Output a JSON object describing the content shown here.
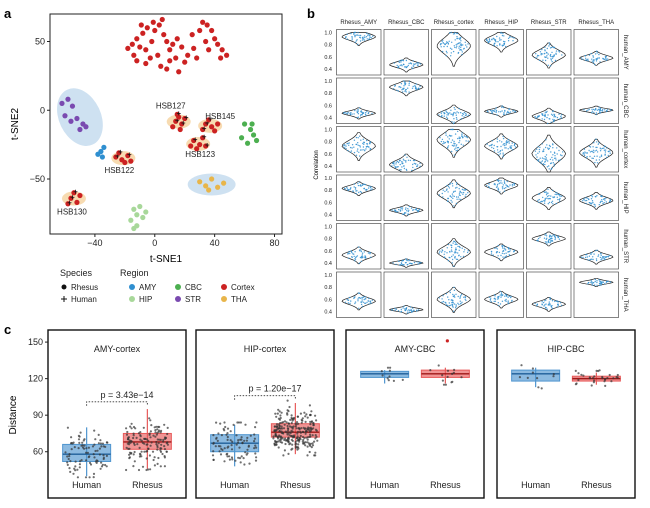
{
  "panel_labels": {
    "a": "a",
    "b": "b",
    "c": "c"
  },
  "colors": {
    "AMY": "#2f8fd0",
    "CBC": "#4caf50",
    "Cortex": "#cc2222",
    "HIP": "#a8d89a",
    "STR": "#7a4ab0",
    "THA": "#e8b54a",
    "ellipse": "#c6dcef",
    "human_box": "#4f95cf",
    "rhesus_box": "#e85a5a",
    "violin_points": "#2f8fd0"
  },
  "chart_data": [
    {
      "id": "tsne",
      "type": "scatter",
      "xlabel": "t-SNE1",
      "ylabel": "t-SNE2",
      "xlim": [
        -70,
        85
      ],
      "ylim": [
        -90,
        70
      ],
      "xticks": [
        -40,
        0,
        40,
        80
      ],
      "yticks": [
        -50,
        0,
        50
      ],
      "xtick_labels": [
        "−40",
        "0",
        "40",
        "80"
      ],
      "ytick_labels": [
        "−50",
        "0",
        "50"
      ],
      "clusters": [
        {
          "region": "Cortex",
          "species": "Rhesus",
          "points": [
            [
              -12,
              52
            ],
            [
              -8,
              56
            ],
            [
              -5,
              60
            ],
            [
              -10,
              46
            ],
            [
              -14,
              40
            ],
            [
              -6,
              44
            ],
            [
              -2,
              50
            ],
            [
              0,
              58
            ],
            [
              3,
              62
            ],
            [
              6,
              55
            ],
            [
              -15,
              48
            ],
            [
              -18,
              45
            ],
            [
              2,
              40
            ],
            [
              -3,
              38
            ],
            [
              8,
              50
            ],
            [
              10,
              44
            ],
            [
              12,
              48
            ],
            [
              14,
              38
            ],
            [
              15,
              52
            ],
            [
              18,
              46
            ],
            [
              20,
              35
            ],
            [
              22,
              40
            ],
            [
              -1,
              64
            ],
            [
              5,
              66
            ],
            [
              -9,
              62
            ],
            [
              25,
              55
            ],
            [
              26,
              45
            ],
            [
              28,
              38
            ],
            [
              30,
              58
            ],
            [
              32,
              64
            ],
            [
              35,
              62
            ],
            [
              38,
              58
            ],
            [
              40,
              52
            ],
            [
              42,
              48
            ],
            [
              45,
              44
            ],
            [
              48,
              40
            ],
            [
              36,
              44
            ],
            [
              34,
              50
            ],
            [
              44,
              38
            ],
            [
              4,
              32
            ],
            [
              8,
              30
            ],
            [
              10,
              36
            ],
            [
              16,
              28
            ],
            [
              -12,
              36
            ],
            [
              -6,
              34
            ]
          ]
        },
        {
          "region": "AMY",
          "species": "Rhesus",
          "points": [
            [
              -36,
              -30
            ],
            [
              -34,
              -27
            ],
            [
              -38,
              -32
            ],
            [
              -35,
              -34
            ]
          ]
        },
        {
          "region": "CBC",
          "species": "Rhesus",
          "points": [
            [
              60,
              -10
            ],
            [
              64,
              -14
            ],
            [
              66,
              -18
            ],
            [
              62,
              -24
            ],
            [
              58,
              -20
            ],
            [
              65,
              -10
            ],
            [
              68,
              -22
            ]
          ]
        },
        {
          "region": "HIP",
          "species": "Rhesus",
          "points": [
            [
              -14,
              -72
            ],
            [
              -12,
              -76
            ],
            [
              -8,
              -78
            ],
            [
              -10,
              -70
            ],
            [
              -16,
              -80
            ],
            [
              -12,
              -84
            ],
            [
              -6,
              -74
            ],
            [
              -14,
              -86
            ]
          ]
        },
        {
          "region": "STR",
          "species": "Rhesus",
          "points": [
            [
              -62,
              5
            ],
            [
              -58,
              8
            ],
            [
              -55,
              3
            ],
            [
              -60,
              -4
            ],
            [
              -52,
              -6
            ],
            [
              -48,
              -10
            ],
            [
              -50,
              -14
            ],
            [
              -56,
              -8
            ],
            [
              -46,
              -12
            ]
          ]
        },
        {
          "region": "THA",
          "species": "Rhesus",
          "points": [
            [
              30,
              -52
            ],
            [
              34,
              -55
            ],
            [
              38,
              -50
            ],
            [
              42,
              -56
            ],
            [
              46,
              -53
            ],
            [
              36,
              -58
            ]
          ]
        },
        {
          "region": "Cortex",
          "species": "Human",
          "label": "HSB127",
          "points": [
            [
              14,
              -8
            ],
            [
              16,
              -5
            ],
            [
              18,
              -10
            ],
            [
              12,
              -12
            ],
            [
              20,
              -6
            ],
            [
              17,
              -14
            ],
            [
              15,
              -3
            ]
          ]
        },
        {
          "region": "Cortex",
          "species": "Human",
          "label": "HSB145",
          "points": [
            [
              34,
              -10
            ],
            [
              38,
              -12
            ],
            [
              36,
              -7
            ],
            [
              40,
              -15
            ],
            [
              32,
              -14
            ],
            [
              42,
              -10
            ]
          ]
        },
        {
          "region": "Cortex",
          "species": "Human",
          "label": "HSB123",
          "points": [
            [
              26,
              -22
            ],
            [
              30,
              -25
            ],
            [
              32,
              -20
            ],
            [
              28,
              -28
            ],
            [
              34,
              -26
            ],
            [
              24,
              -26
            ]
          ]
        },
        {
          "region": "Cortex",
          "species": "Human",
          "label": "HSB122",
          "points": [
            [
              -26,
              -34
            ],
            [
              -22,
              -36
            ],
            [
              -18,
              -33
            ],
            [
              -20,
              -38
            ],
            [
              -24,
              -31
            ],
            [
              -16,
              -37
            ]
          ]
        },
        {
          "region": "Cortex",
          "species": "Human",
          "label": "HSB130",
          "points": [
            [
              -56,
              -64
            ],
            [
              -52,
              -67
            ],
            [
              -54,
              -60
            ],
            [
              -50,
              -62
            ],
            [
              -58,
              -68
            ]
          ]
        }
      ],
      "ellipses": [
        {
          "cx": -50,
          "cy": -5,
          "rx": 14,
          "ry": 22,
          "rot": -25
        },
        {
          "cx": 38,
          "cy": -54,
          "rx": 16,
          "ry": 8,
          "rot": 0
        }
      ],
      "legend": {
        "species_title": "Species",
        "species_items": [
          "Rhesus",
          "Human"
        ],
        "region_title": "Region",
        "region_items": [
          "AMY",
          "CBC",
          "Cortex",
          "HIP",
          "STR",
          "THA"
        ]
      }
    },
    {
      "id": "violins",
      "type": "violin",
      "ylabel": "Correlation",
      "yticks": [
        0.4,
        0.6,
        0.8,
        1.0
      ],
      "ytick_labels": [
        "0.4",
        "0.6",
        "0.8",
        "1.0"
      ],
      "columns": [
        "Rhesus_AMY",
        "Rhesus_CBC",
        "Rhesus_cortex",
        "Rhesus_HIP",
        "Rhesus_STR",
        "Rhesus_THA"
      ],
      "rows": [
        "human_AMY",
        "human_CBC",
        "human_cortex",
        "human_HIP",
        "human_STR",
        "human_THA"
      ],
      "medians": [
        [
          0.93,
          0.47,
          0.78,
          0.87,
          0.63,
          0.58
        ],
        [
          0.47,
          0.9,
          0.45,
          0.5,
          0.42,
          0.52
        ],
        [
          0.73,
          0.42,
          0.83,
          0.73,
          0.6,
          0.62
        ],
        [
          0.83,
          0.47,
          0.75,
          0.88,
          0.67,
          0.63
        ],
        [
          0.53,
          0.4,
          0.58,
          0.58,
          0.8,
          0.5
        ],
        [
          0.57,
          0.43,
          0.6,
          0.6,
          0.52,
          0.88
        ]
      ],
      "spreads": [
        [
          0.06,
          0.05,
          0.14,
          0.08,
          0.09,
          0.05
        ],
        [
          0.04,
          0.06,
          0.07,
          0.04,
          0.06,
          0.03
        ],
        [
          0.1,
          0.08,
          0.12,
          0.09,
          0.14,
          0.1
        ],
        [
          0.05,
          0.04,
          0.1,
          0.06,
          0.08,
          0.06
        ],
        [
          0.06,
          0.03,
          0.1,
          0.06,
          0.05,
          0.05
        ],
        [
          0.06,
          0.03,
          0.09,
          0.06,
          0.05,
          0.03
        ]
      ]
    },
    {
      "id": "distance",
      "type": "box",
      "ylabel": "Distance",
      "ylim": [
        45,
        155
      ],
      "yticks": [
        60,
        90,
        120,
        150
      ],
      "ytick_labels": [
        "60",
        "90",
        "120",
        "150"
      ],
      "categories": [
        "Human",
        "Rhesus"
      ],
      "panels": [
        {
          "title": "AMY-cortex",
          "pvalue": "p = 3.43e−14",
          "boxes": [
            {
              "q1": 52,
              "median": 58,
              "q3": 66,
              "lo": 40,
              "hi": 80,
              "n": 90
            },
            {
              "q1": 62,
              "median": 68,
              "q3": 75,
              "lo": 46,
              "hi": 95,
              "n": 140
            }
          ]
        },
        {
          "title": "HIP-cortex",
          "pvalue": "p = 1.20e−17",
          "boxes": [
            {
              "q1": 60,
              "median": 67,
              "q3": 74,
              "lo": 48,
              "hi": 82,
              "n": 90
            },
            {
              "q1": 72,
              "median": 76,
              "q3": 83,
              "lo": 58,
              "hi": 100,
              "n": 260
            }
          ]
        },
        {
          "title": "AMY-CBC",
          "pvalue": "",
          "boxes": [
            {
              "q1": 121,
              "median": 124,
              "q3": 126,
              "lo": 116,
              "hi": 127,
              "n": 10
            },
            {
              "q1": 121,
              "median": 124,
              "q3": 127,
              "lo": 116,
              "hi": 129,
              "n": 14
            }
          ]
        },
        {
          "title": "HIP-CBC",
          "pvalue": "",
          "boxes": [
            {
              "q1": 118,
              "median": 124,
              "q3": 127,
              "lo": 113,
              "hi": 129,
              "n": 10
            },
            {
              "q1": 118,
              "median": 120,
              "q3": 122,
              "lo": 115,
              "hi": 125,
              "n": 30
            }
          ]
        }
      ]
    }
  ]
}
